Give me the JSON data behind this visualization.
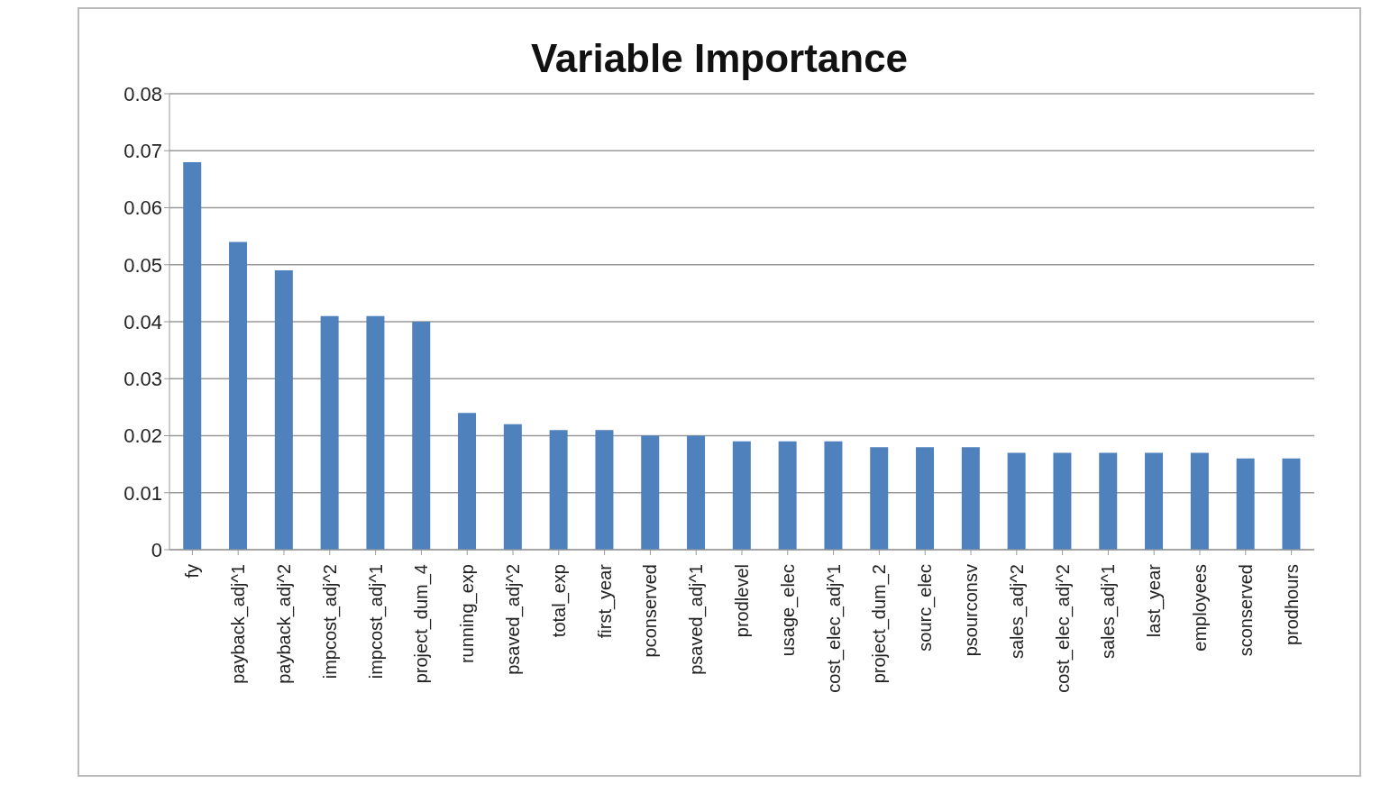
{
  "chart_data": {
    "type": "bar",
    "title": "Variable Importance",
    "categories": [
      "fy",
      "payback_adj^1",
      "payback_adj^2",
      "impcost_adj^2",
      "impcost_adj^1",
      "project_dum_4",
      "running_exp",
      "psaved_adj^2",
      "total_exp",
      "first_year",
      "pconserved",
      "psaved_adj^1",
      "prodlevel",
      "usage_elec",
      "cost_elec_adj^1",
      "project_dum_2",
      "sourc_elec",
      "psourconsv",
      "sales_adj^2",
      "cost_elec_adj^2",
      "sales_adj^1",
      "last_year",
      "employees",
      "sconserved",
      "prodhours"
    ],
    "values": [
      0.068,
      0.054,
      0.049,
      0.041,
      0.041,
      0.04,
      0.024,
      0.022,
      0.021,
      0.021,
      0.02,
      0.02,
      0.019,
      0.019,
      0.019,
      0.018,
      0.018,
      0.018,
      0.017,
      0.017,
      0.017,
      0.017,
      0.017,
      0.016,
      0.016
    ],
    "color": "#4f81bd",
    "ylim": [
      0,
      0.08
    ],
    "yticks": [
      0,
      0.01,
      0.02,
      0.03,
      0.04,
      0.05,
      0.06,
      0.07,
      0.08
    ],
    "grid": "y"
  }
}
